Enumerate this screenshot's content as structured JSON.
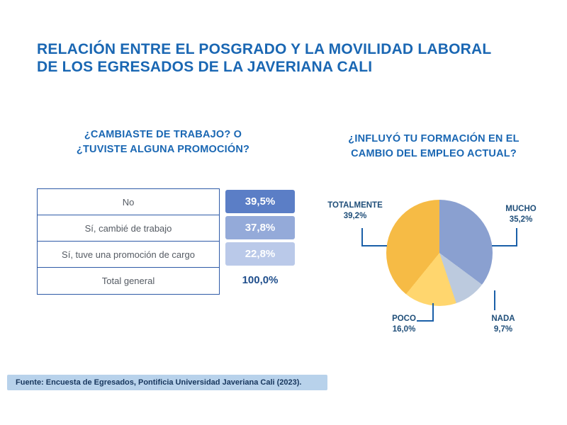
{
  "title": {
    "line1": "RELACIÓN ENTRE EL POSGRADO Y LA MOVILIDAD LABORAL",
    "line2": "DE LOS EGRESADOS DE LA JAVERIANA CALI"
  },
  "left": {
    "question_line1": "¿CAMBIASTE DE TRABAJO? O",
    "question_line2": "¿TUVISTE ALGUNA PROMOCIÓN?",
    "table": {
      "rows": [
        {
          "label": "No",
          "value": "39,5%",
          "badge_color": "#5b7ec6"
        },
        {
          "label": "Sí, cambié de trabajo",
          "value": "37,8%",
          "badge_color": "#94aad9"
        },
        {
          "label": "Sí, tuve una promoción de cargo",
          "value": "22,8%",
          "badge_color": "#bac9e9"
        },
        {
          "label": "Total general",
          "value": "100,0%",
          "badge_color": null
        }
      ]
    }
  },
  "right": {
    "question_line1": "¿INFLUYÓ TU FORMACIÓN EN EL",
    "question_line2": "CAMBIO DEL EMPLEO ACTUAL?",
    "labels": [
      {
        "name": "TOTALMENTE",
        "value": "39,2%"
      },
      {
        "name": "MUCHO",
        "value": "35,2%"
      },
      {
        "name": "NADA",
        "value": "9,7%"
      },
      {
        "name": "POCO",
        "value": "16,0%"
      }
    ]
  },
  "chart_data": [
    {
      "type": "table",
      "title": "¿Cambiaste de trabajo? O ¿Tuviste alguna promoción?",
      "categories": [
        "No",
        "Sí, cambié de trabajo",
        "Sí, tuve una promoción de cargo",
        "Total general"
      ],
      "values": [
        39.5,
        37.8,
        22.8,
        100.0
      ],
      "value_unit": "%"
    },
    {
      "type": "pie",
      "title": "¿Influyó tu formación en el cambio del empleo actual?",
      "categories": [
        "MUCHO",
        "NADA",
        "POCO",
        "TOTALMENTE"
      ],
      "values": [
        35.2,
        9.7,
        16.0,
        39.2
      ],
      "colors": [
        "#8aa0d0",
        "#bccade",
        "#ffd66e",
        "#f6bb45"
      ],
      "start_angle": "top",
      "direction": "clockwise",
      "legend_position": "outside-callouts"
    }
  ],
  "colors": {
    "title_blue": "#1a67b3",
    "table_border": "#2e5aa7",
    "callout_line": "#1a5fa8",
    "footer_bg": "#b8d2eb"
  },
  "footer": {
    "text": "Fuente: Encuesta de Egresados, Pontificia Universidad Javeriana Cali (2023)."
  }
}
